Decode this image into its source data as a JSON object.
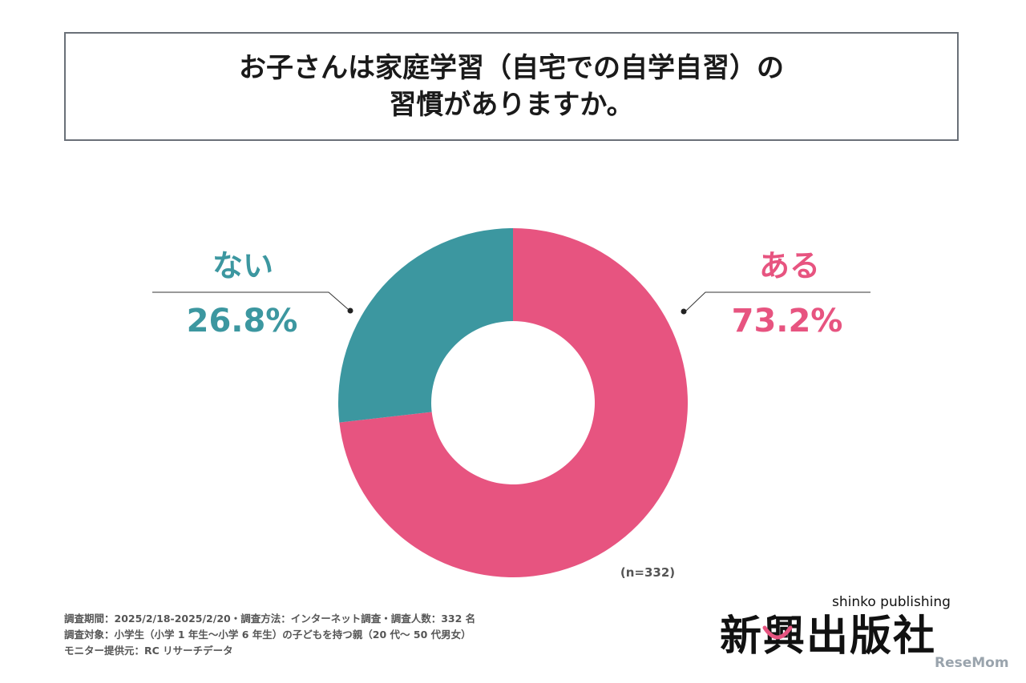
{
  "title": {
    "line1": "お子さんは家庭学習（自宅での自学自習）の",
    "line2": "習慣がありますか。"
  },
  "chart_data": {
    "type": "pie",
    "donut": true,
    "slices": [
      {
        "label": "ある",
        "value": 73.2,
        "value_label": "73.2%",
        "color": "#e75480"
      },
      {
        "label": "ない",
        "value": 26.8,
        "value_label": "26.8%",
        "color": "#3c97a0"
      }
    ],
    "sample_note": "(n=332)"
  },
  "footnotes": [
    "調査期間：2025/2/18-2025/2/20・調査方法：インターネット調査・調査人数：332 名",
    "調査対象：小学生（小学 1 年生～小学 6 年生）の子どもを持つ親（20 代～ 50 代男女）",
    "モニター提供元：RC リサーチデータ"
  ],
  "logo": {
    "main": "新興出版社",
    "sub": "shinko publishing"
  },
  "watermark": "ReseMom"
}
